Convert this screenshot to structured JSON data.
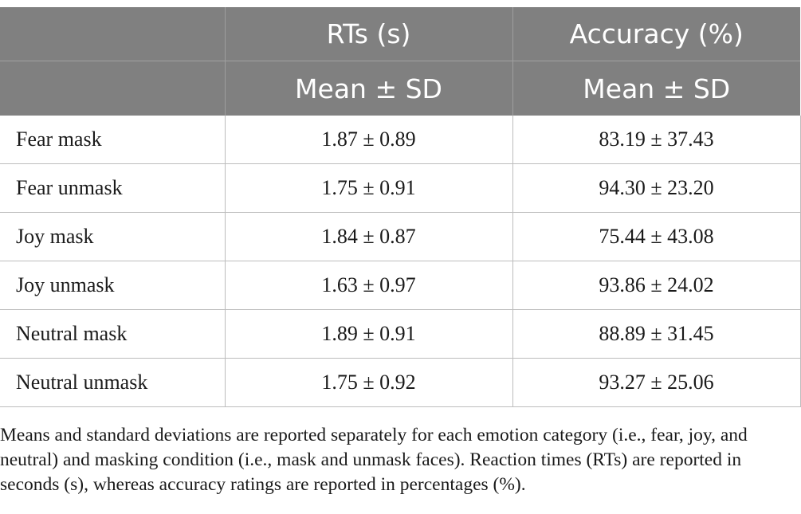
{
  "table": {
    "header_row1": [
      "",
      "RTs (s)",
      "Accuracy (%)"
    ],
    "header_row2": [
      "",
      "Mean ± SD",
      "Mean ± SD"
    ],
    "rows": [
      {
        "condition": "Fear mask",
        "rt": "1.87 ± 0.89",
        "accuracy": "83.19 ± 37.43"
      },
      {
        "condition": "Fear unmask",
        "rt": "1.75 ± 0.91",
        "accuracy": "94.30 ± 23.20"
      },
      {
        "condition": "Joy mask",
        "rt": "1.84 ± 0.87",
        "accuracy": "75.44 ± 43.08"
      },
      {
        "condition": "Joy unmask",
        "rt": "1.63 ± 0.97",
        "accuracy": "93.86 ± 24.02"
      },
      {
        "condition": "Neutral mask",
        "rt": "1.89 ± 0.91",
        "accuracy": "88.89 ± 31.45"
      },
      {
        "condition": "Neutral unmask",
        "rt": "1.75 ± 0.92",
        "accuracy": "93.27 ± 25.06"
      }
    ]
  },
  "note": "Means and standard deviations are reported separately for each emotion category (i.e., fear, joy, and neutral) and masking condition (i.e., mask and unmask faces). Reaction times (RTs) are reported in seconds (s), whereas accuracy ratings are reported in percentages (%).",
  "colors": {
    "header_background": "#808080",
    "header_text": "#ffffff",
    "grid_lines": "#bdbdbd",
    "body_text": "#1a1a1a"
  }
}
